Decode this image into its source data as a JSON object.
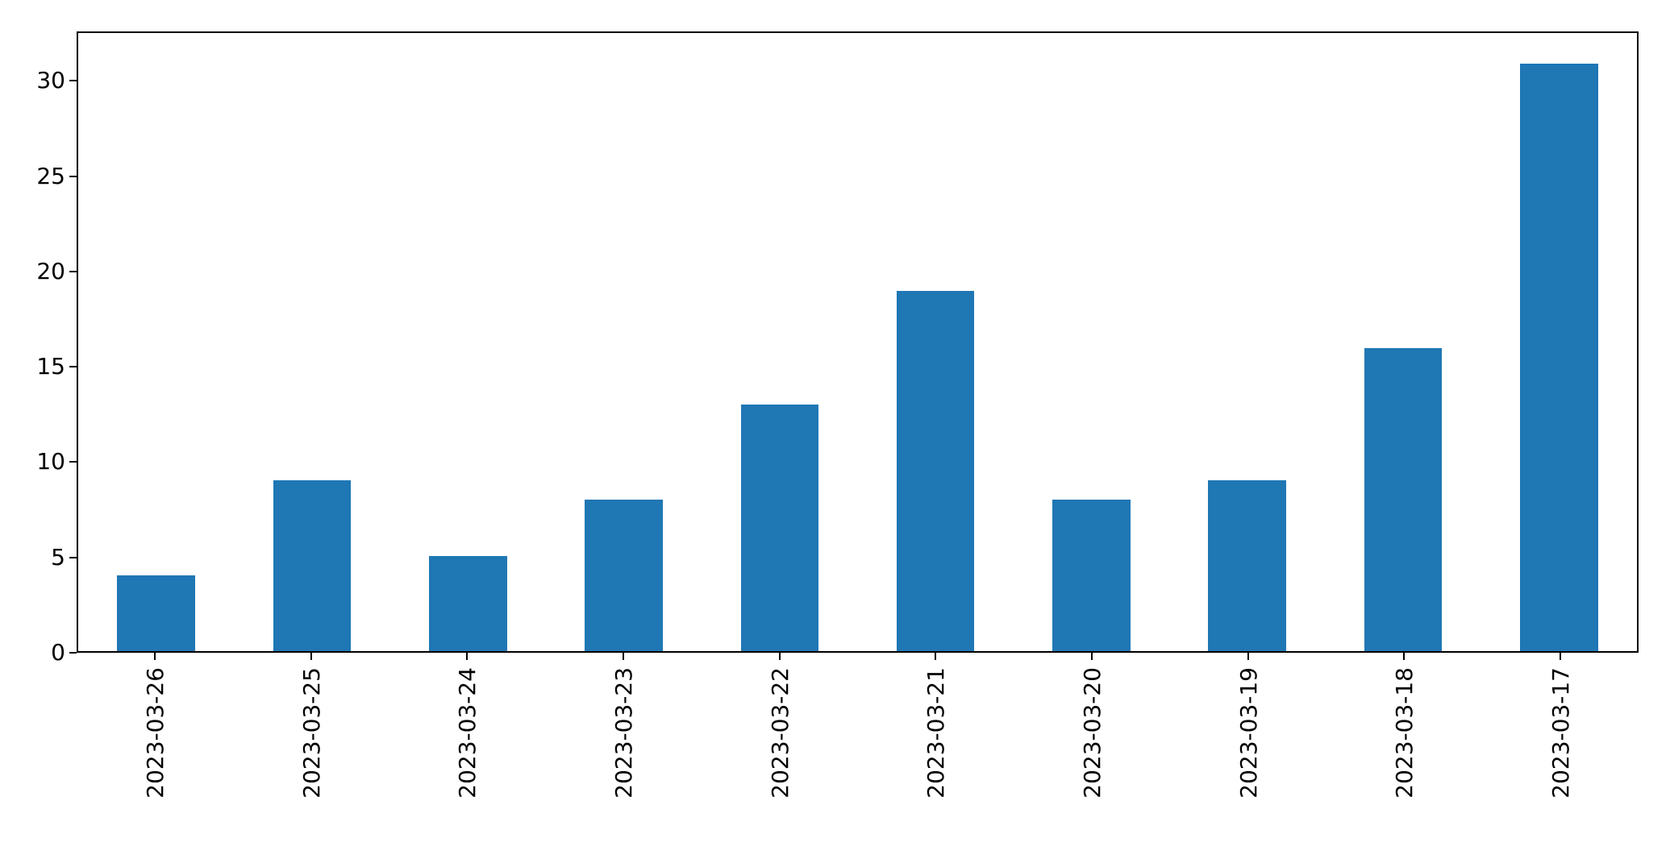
{
  "chart_data": {
    "type": "bar",
    "title": "",
    "xlabel": "",
    "ylabel": "",
    "categories": [
      "2023-03-26",
      "2023-03-25",
      "2023-03-24",
      "2023-03-23",
      "2023-03-22",
      "2023-03-21",
      "2023-03-20",
      "2023-03-19",
      "2023-03-18",
      "2023-03-17"
    ],
    "values": [
      4,
      9,
      5,
      8,
      13,
      19,
      8,
      9,
      16,
      31
    ],
    "yticks": [
      0,
      5,
      10,
      15,
      20,
      25,
      30
    ],
    "ylim": [
      0,
      32.6
    ],
    "x_tick_rotation_deg": 90,
    "bar_color": "#1f77b4",
    "bar_width_ratio": 0.5,
    "grid": false,
    "legend": null,
    "axis_color": "#000000",
    "background_color": "#ffffff"
  }
}
